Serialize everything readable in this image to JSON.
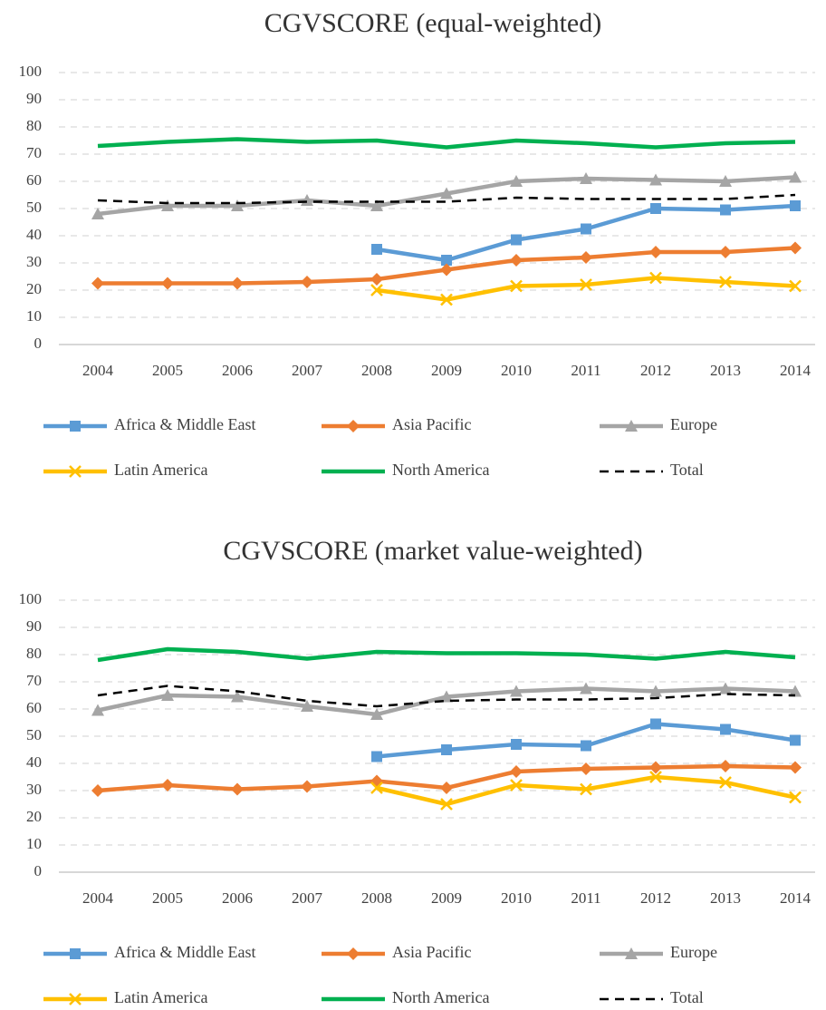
{
  "chart_data": [
    {
      "type": "line",
      "title": "CGVSCORE  (equal-weighted)",
      "categories": [
        "2004",
        "2005",
        "2006",
        "2007",
        "2008",
        "2009",
        "2010",
        "2011",
        "2012",
        "2013",
        "2014"
      ],
      "ylim": [
        0,
        100
      ],
      "yticks": [
        0,
        10,
        20,
        30,
        40,
        50,
        60,
        70,
        80,
        90,
        100
      ],
      "grid": true,
      "series": [
        {
          "name": "Africa & Middle East",
          "color": "#5b9bd5",
          "marker": "square",
          "values": [
            null,
            null,
            null,
            null,
            35,
            31,
            38.5,
            42.5,
            50,
            49.5,
            51
          ]
        },
        {
          "name": "Asia Pacific",
          "color": "#ed7d31",
          "marker": "diamond",
          "values": [
            22.5,
            22.5,
            22.5,
            23,
            24,
            27.5,
            31,
            32,
            34,
            34,
            35.5
          ]
        },
        {
          "name": "Europe",
          "color": "#a5a5a5",
          "marker": "triangle",
          "values": [
            48,
            51,
            51,
            53,
            51,
            55.5,
            60,
            61,
            60.5,
            60,
            61.5
          ]
        },
        {
          "name": "Latin America",
          "color": "#ffc000",
          "marker": "x",
          "values": [
            null,
            null,
            null,
            null,
            20,
            16.5,
            21.5,
            22,
            24.5,
            23,
            21.5
          ]
        },
        {
          "name": "North America",
          "color": "#00b050",
          "values": [
            73,
            74.5,
            75.5,
            74.5,
            75,
            72.5,
            75,
            74,
            72.5,
            74,
            74.5
          ]
        },
        {
          "name": "Total",
          "color": "#000000",
          "dash": true,
          "values": [
            53,
            52,
            52,
            52.5,
            52.5,
            52.5,
            54,
            53.5,
            53.5,
            53.5,
            55
          ]
        }
      ]
    },
    {
      "type": "line",
      "title": "CGVSCORE  (market value-weighted)",
      "categories": [
        "2004",
        "2005",
        "2006",
        "2007",
        "2008",
        "2009",
        "2010",
        "2011",
        "2012",
        "2013",
        "2014"
      ],
      "ylim": [
        0,
        100
      ],
      "yticks": [
        0,
        10,
        20,
        30,
        40,
        50,
        60,
        70,
        80,
        90,
        100
      ],
      "grid": true,
      "series": [
        {
          "name": "Africa & Middle East",
          "color": "#5b9bd5",
          "marker": "square",
          "values": [
            null,
            null,
            null,
            null,
            42.5,
            45,
            47,
            46.5,
            54.5,
            52.5,
            48.5
          ]
        },
        {
          "name": "Asia Pacific",
          "color": "#ed7d31",
          "marker": "diamond",
          "values": [
            30,
            32,
            30.5,
            31.5,
            33.5,
            31,
            37,
            38,
            38.5,
            39,
            38.5
          ]
        },
        {
          "name": "Europe",
          "color": "#a5a5a5",
          "marker": "triangle",
          "values": [
            59.5,
            65,
            64.5,
            61,
            58,
            64.5,
            66.5,
            67.5,
            66.5,
            67.5,
            66.5
          ]
        },
        {
          "name": "Latin America",
          "color": "#ffc000",
          "marker": "x",
          "values": [
            null,
            null,
            null,
            null,
            31,
            25,
            32,
            30.5,
            35,
            33,
            27.5
          ]
        },
        {
          "name": "North America",
          "color": "#00b050",
          "values": [
            78,
            82,
            81,
            78.5,
            81,
            80.5,
            80.5,
            80,
            78.5,
            81,
            79
          ]
        },
        {
          "name": "Total",
          "color": "#000000",
          "dash": true,
          "values": [
            65,
            68.5,
            66.5,
            63,
            61,
            63,
            63.5,
            63.5,
            64,
            65.5,
            65
          ]
        }
      ]
    }
  ]
}
